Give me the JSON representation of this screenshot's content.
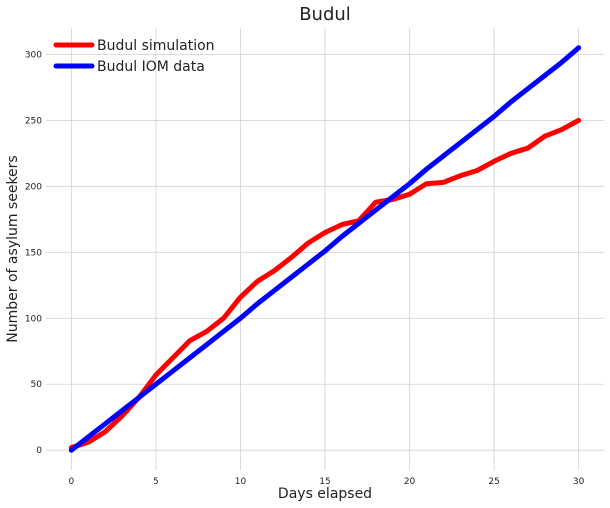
{
  "chart_data": {
    "type": "line",
    "title": "Budul",
    "xlabel": "Days elapsed",
    "ylabel": "Number of asylum seekers",
    "xlim": [
      -1.5,
      31.5
    ],
    "ylim": [
      -15,
      320
    ],
    "xticks": [
      0,
      5,
      10,
      15,
      20,
      25,
      30
    ],
    "yticks": [
      0,
      50,
      100,
      150,
      200,
      250,
      300
    ],
    "grid": true,
    "legend": "top-left",
    "series": [
      {
        "name": "Budul simulation",
        "color": "#ff0000",
        "x": [
          0,
          1,
          2,
          3,
          4,
          5,
          6,
          7,
          8,
          9,
          10,
          11,
          12,
          13,
          14,
          15,
          16,
          17,
          18,
          19,
          20,
          21,
          22,
          23,
          24,
          25,
          26,
          27,
          28,
          29,
          30
        ],
        "values": [
          2,
          6,
          14,
          26,
          40,
          57,
          70,
          83,
          90,
          100,
          116,
          128,
          136,
          146,
          157,
          165,
          171,
          174,
          188,
          190,
          194,
          202,
          203,
          208,
          212,
          219,
          225,
          229,
          238,
          243,
          250
        ]
      },
      {
        "name": "Budul IOM data",
        "color": "#0000ff",
        "x": [
          0,
          1,
          2,
          3,
          4,
          5,
          6,
          7,
          8,
          9,
          10,
          11,
          12,
          13,
          14,
          15,
          16,
          17,
          18,
          19,
          20,
          21,
          22,
          23,
          24,
          25,
          26,
          27,
          28,
          29,
          30
        ],
        "values": [
          0,
          10,
          20,
          30,
          40,
          50,
          60,
          70,
          80,
          90,
          100,
          111,
          121,
          131,
          141,
          151,
          162,
          172,
          182,
          192,
          202,
          213,
          223,
          233,
          243,
          253,
          264,
          274,
          284,
          294,
          305
        ]
      }
    ]
  }
}
